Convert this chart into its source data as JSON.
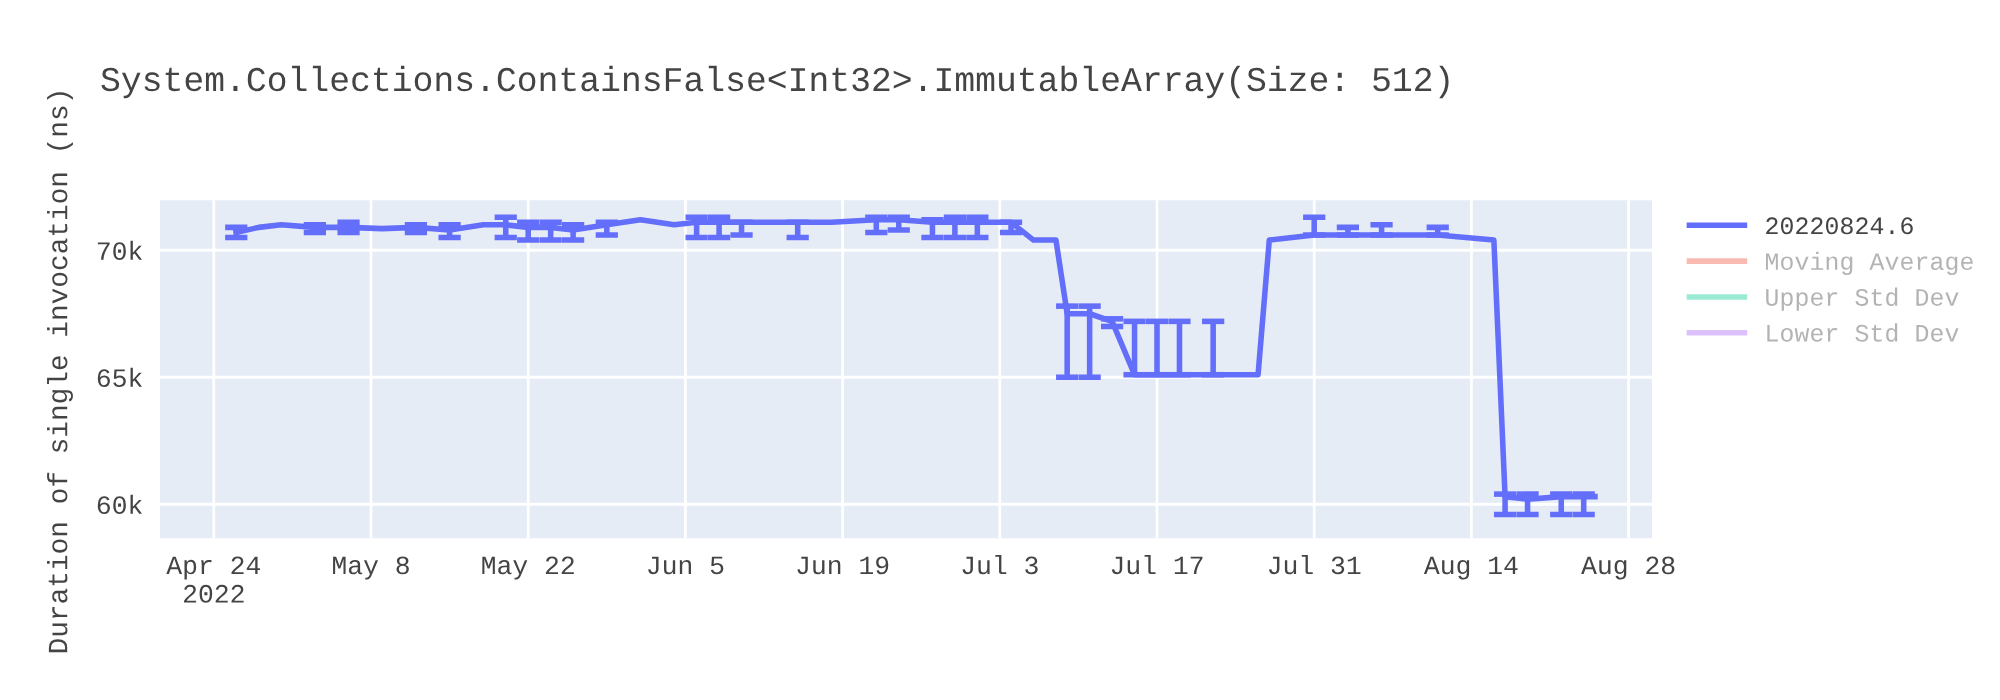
{
  "chart_data": {
    "type": "line",
    "title": "System.Collections.ContainsFalse<Int32>.ImmutableArray(Size: 512)",
    "ylabel": "Duration of single invocation (ns)",
    "x": [
      "2022-04-26",
      "2022-04-28",
      "2022-04-30",
      "2022-05-03",
      "2022-05-06",
      "2022-05-09",
      "2022-05-12",
      "2022-05-15",
      "2022-05-18",
      "2022-05-20",
      "2022-05-22",
      "2022-05-24",
      "2022-05-26",
      "2022-05-29",
      "2022-06-01",
      "2022-06-04",
      "2022-06-06",
      "2022-06-08",
      "2022-06-10",
      "2022-06-15",
      "2022-06-18",
      "2022-06-22",
      "2022-06-24",
      "2022-06-27",
      "2022-06-29",
      "2022-07-01",
      "2022-07-04",
      "2022-07-06",
      "2022-07-08",
      "2022-07-09",
      "2022-07-11",
      "2022-07-13",
      "2022-07-15",
      "2022-07-17",
      "2022-07-19",
      "2022-07-22",
      "2022-07-26",
      "2022-07-27",
      "2022-07-31",
      "2022-08-03",
      "2022-08-06",
      "2022-08-11",
      "2022-08-16",
      "2022-08-17",
      "2022-08-19",
      "2022-08-22",
      "2022-08-24",
      "2022-08-25"
    ],
    "series": [
      {
        "name": "20220824.6",
        "color": "#636efa",
        "values": [
          70700,
          70900,
          71000,
          70900,
          70900,
          70850,
          70900,
          70800,
          71000,
          71000,
          70900,
          70900,
          70800,
          71000,
          71200,
          71000,
          71100,
          71100,
          71100,
          71100,
          71100,
          71200,
          71200,
          71100,
          71100,
          71100,
          71100,
          70400,
          70400,
          67500,
          67500,
          67200,
          65100,
          65100,
          65100,
          65100,
          65100,
          70400,
          70600,
          70600,
          70600,
          70600,
          70400,
          60300,
          60200,
          60300,
          60300,
          60300
        ],
        "errors": [
          [
            70500,
            70900
          ],
          null,
          null,
          [
            70700,
            71000
          ],
          [
            70700,
            71100
          ],
          null,
          [
            70700,
            71000
          ],
          [
            70500,
            71000
          ],
          null,
          [
            70500,
            71300
          ],
          [
            70400,
            71100
          ],
          [
            70400,
            71100
          ],
          [
            70400,
            71000
          ],
          [
            70600,
            71100
          ],
          null,
          null,
          [
            70500,
            71300
          ],
          [
            70500,
            71300
          ],
          [
            70600,
            71100
          ],
          [
            70500,
            71100
          ],
          null,
          [
            70700,
            71300
          ],
          [
            70800,
            71300
          ],
          [
            70500,
            71200
          ],
          [
            70500,
            71300
          ],
          [
            70500,
            71300
          ],
          [
            70700,
            71100
          ],
          null,
          null,
          [
            65000,
            67800
          ],
          [
            65000,
            67800
          ],
          [
            67000,
            67300
          ],
          [
            65100,
            67200
          ],
          [
            65100,
            67200
          ],
          [
            65100,
            67200
          ],
          [
            65100,
            67200
          ],
          null,
          null,
          [
            70600,
            71300
          ],
          [
            70600,
            70900
          ],
          [
            70600,
            71000
          ],
          [
            70600,
            70900
          ],
          null,
          [
            59600,
            60400
          ],
          [
            59600,
            60400
          ],
          [
            59600,
            60400
          ],
          [
            59600,
            60400
          ],
          null
        ]
      },
      {
        "name": "Moving Average",
        "color": "#ef553b",
        "values": [
          null,
          null,
          null,
          null,
          null,
          null,
          null,
          null,
          null,
          null,
          null,
          null,
          null,
          null,
          null,
          null,
          null,
          null,
          null,
          null,
          null,
          null,
          null,
          null,
          null,
          null,
          null,
          null,
          null,
          null,
          null,
          null,
          null,
          null,
          null,
          null,
          null,
          null,
          null,
          null,
          null,
          null,
          null,
          null,
          null,
          null,
          null,
          null
        ]
      },
      {
        "name": "Upper Std Dev",
        "color": "#00cc96",
        "values": [
          null,
          null,
          null,
          null,
          null,
          null,
          null,
          null,
          null,
          null,
          null,
          null,
          null,
          null,
          null,
          null,
          null,
          null,
          null,
          null,
          null,
          null,
          null,
          null,
          null,
          null,
          null,
          null,
          null,
          null,
          null,
          null,
          null,
          null,
          null,
          null,
          null,
          null,
          null,
          null,
          null,
          null,
          null,
          null,
          null,
          null,
          null,
          null
        ]
      },
      {
        "name": "Lower Std Dev",
        "color": "#ab63fa",
        "values": [
          null,
          null,
          null,
          null,
          null,
          null,
          null,
          null,
          null,
          null,
          null,
          null,
          null,
          null,
          null,
          null,
          null,
          null,
          null,
          null,
          null,
          null,
          null,
          null,
          null,
          null,
          null,
          null,
          null,
          null,
          null,
          null,
          null,
          null,
          null,
          null,
          null,
          null,
          null,
          null,
          null,
          null,
          null,
          null,
          null,
          null,
          null,
          null
        ]
      }
    ],
    "xlim": [
      "2022-04-19T05:00",
      "2022-08-30T02:00"
    ],
    "xticks": [
      {
        "value": "2022-04-24",
        "label": "Apr 24\n2022"
      },
      {
        "value": "2022-05-08",
        "label": "May 8"
      },
      {
        "value": "2022-05-22",
        "label": "May 22"
      },
      {
        "value": "2022-06-05",
        "label": "Jun 5"
      },
      {
        "value": "2022-06-19",
        "label": "Jun 19"
      },
      {
        "value": "2022-07-03",
        "label": "Jul 3"
      },
      {
        "value": "2022-07-17",
        "label": "Jul 17"
      },
      {
        "value": "2022-07-31",
        "label": "Jul 31"
      },
      {
        "value": "2022-08-14",
        "label": "Aug 14"
      },
      {
        "value": "2022-08-28",
        "label": "Aug 28"
      }
    ],
    "ylim": [
      58660,
      71970
    ],
    "yticks": [
      {
        "value": 60000,
        "label": "60k"
      },
      {
        "value": 65000,
        "label": "65k"
      },
      {
        "value": 70000,
        "label": "70k"
      }
    ],
    "grid": true,
    "legend": "top right",
    "marker": "none",
    "line_style": "solid"
  }
}
